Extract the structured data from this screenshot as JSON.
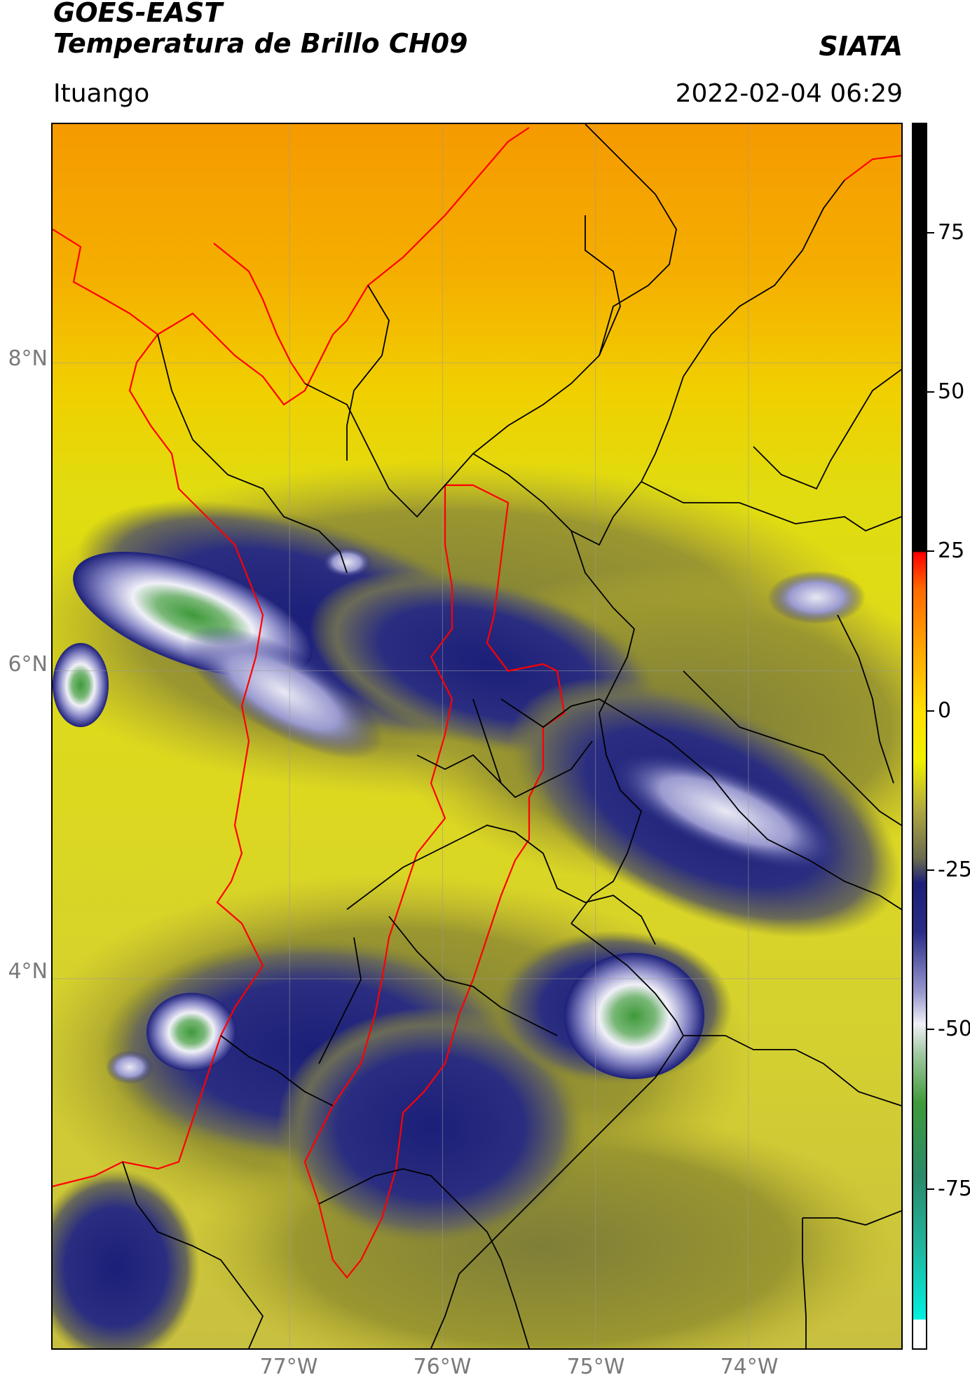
{
  "header": {
    "title_line1": "GOES-EAST",
    "title_line2": "Temperatura de Brillo CH09",
    "organization": "SIATA",
    "region": "Ituango",
    "datetime": "2022-02-04 06:29"
  },
  "map": {
    "latitude_labels": [
      "8°N",
      "6°N",
      "4°N"
    ],
    "longitude_labels": [
      "77°W",
      "76°W",
      "75°W",
      "74°W"
    ],
    "lat_values": [
      8,
      6,
      4
    ],
    "lon_values": [
      -77,
      -76,
      -75,
      -74
    ],
    "extent": {
      "lon_min": -78.55,
      "lon_max": -73.0,
      "lat_min": 1.6,
      "lat_max": 9.55
    },
    "colors": {
      "warm_background": "#f5a800",
      "mid_yellow": "#e8e000",
      "olive": "#8a8a30",
      "cold_navy": "#1c1f78",
      "coldest_white": "#f0f0f8",
      "deepest_green": "#3e9a3a",
      "boundary_black": "#000000",
      "boundary_red": "#ff0000"
    }
  },
  "colorbar": {
    "range": [
      -100,
      92
    ],
    "tick_values": [
      75,
      50,
      25,
      0,
      -25,
      -50,
      -75
    ],
    "tick_labels": [
      "75",
      "50",
      "25",
      "0",
      "-25",
      "-50",
      "-75"
    ]
  }
}
